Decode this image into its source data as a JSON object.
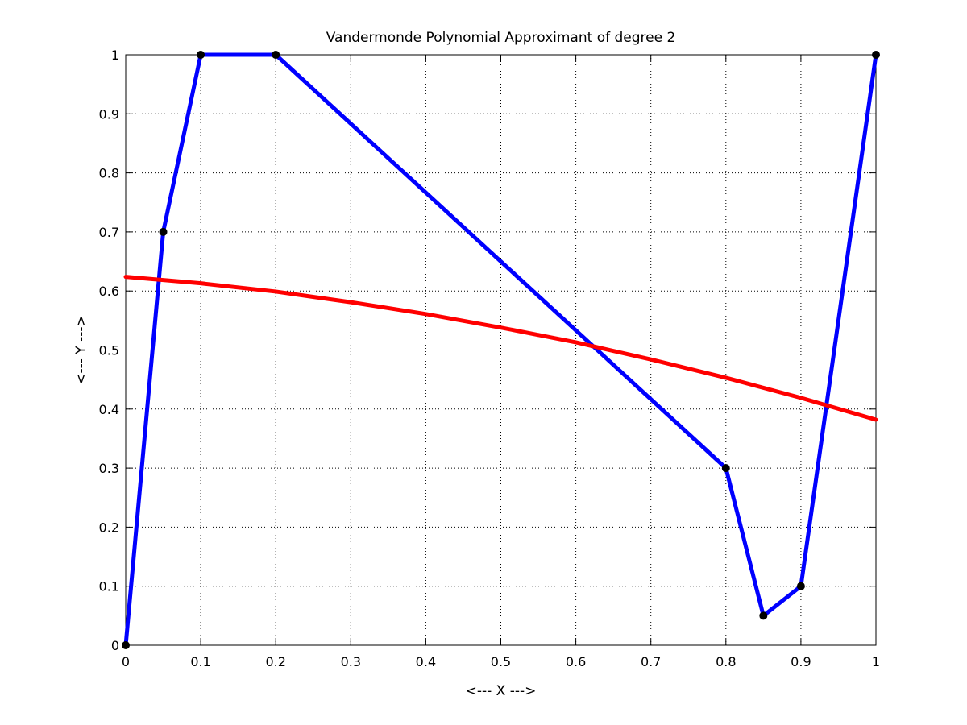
{
  "chart_data": {
    "type": "line",
    "title": "Vandermonde Polynomial Approximant of degree 2",
    "xlabel": "<--- X --->",
    "ylabel": "<--- Y --->",
    "xlim": [
      0,
      1
    ],
    "ylim": [
      0,
      1
    ],
    "grid": true,
    "xticks": [
      0,
      0.1,
      0.2,
      0.3,
      0.4,
      0.5,
      0.6,
      0.7,
      0.8,
      0.9,
      1
    ],
    "xtick_labels": [
      "0",
      "0.1",
      "0.2",
      "0.3",
      "0.4",
      "0.5",
      "0.6",
      "0.7",
      "0.8",
      "0.9",
      "1"
    ],
    "yticks": [
      0,
      0.1,
      0.2,
      0.3,
      0.4,
      0.5,
      0.6,
      0.7,
      0.8,
      0.9,
      1
    ],
    "ytick_labels": [
      "0",
      "0.1",
      "0.2",
      "0.3",
      "0.4",
      "0.5",
      "0.6",
      "0.7",
      "0.8",
      "0.9",
      "1"
    ],
    "series": [
      {
        "kind": "data-line-with-markers",
        "color": "#0000ff",
        "marker_color": "#000000",
        "x": [
          0,
          0.05,
          0.1,
          0.2,
          0.8,
          0.85,
          0.9,
          1.0
        ],
        "y": [
          0,
          0.7,
          1.0,
          1.0,
          0.3,
          0.05,
          0.1,
          1.0
        ]
      },
      {
        "kind": "approximant-curve",
        "color": "#ff0000",
        "x": [
          0,
          0.1,
          0.2,
          0.3,
          0.4,
          0.5,
          0.6,
          0.7,
          0.8,
          0.9,
          1.0
        ],
        "y": [
          0.624,
          0.613,
          0.599,
          0.581,
          0.561,
          0.538,
          0.513,
          0.484,
          0.453,
          0.419,
          0.382
        ]
      }
    ]
  }
}
